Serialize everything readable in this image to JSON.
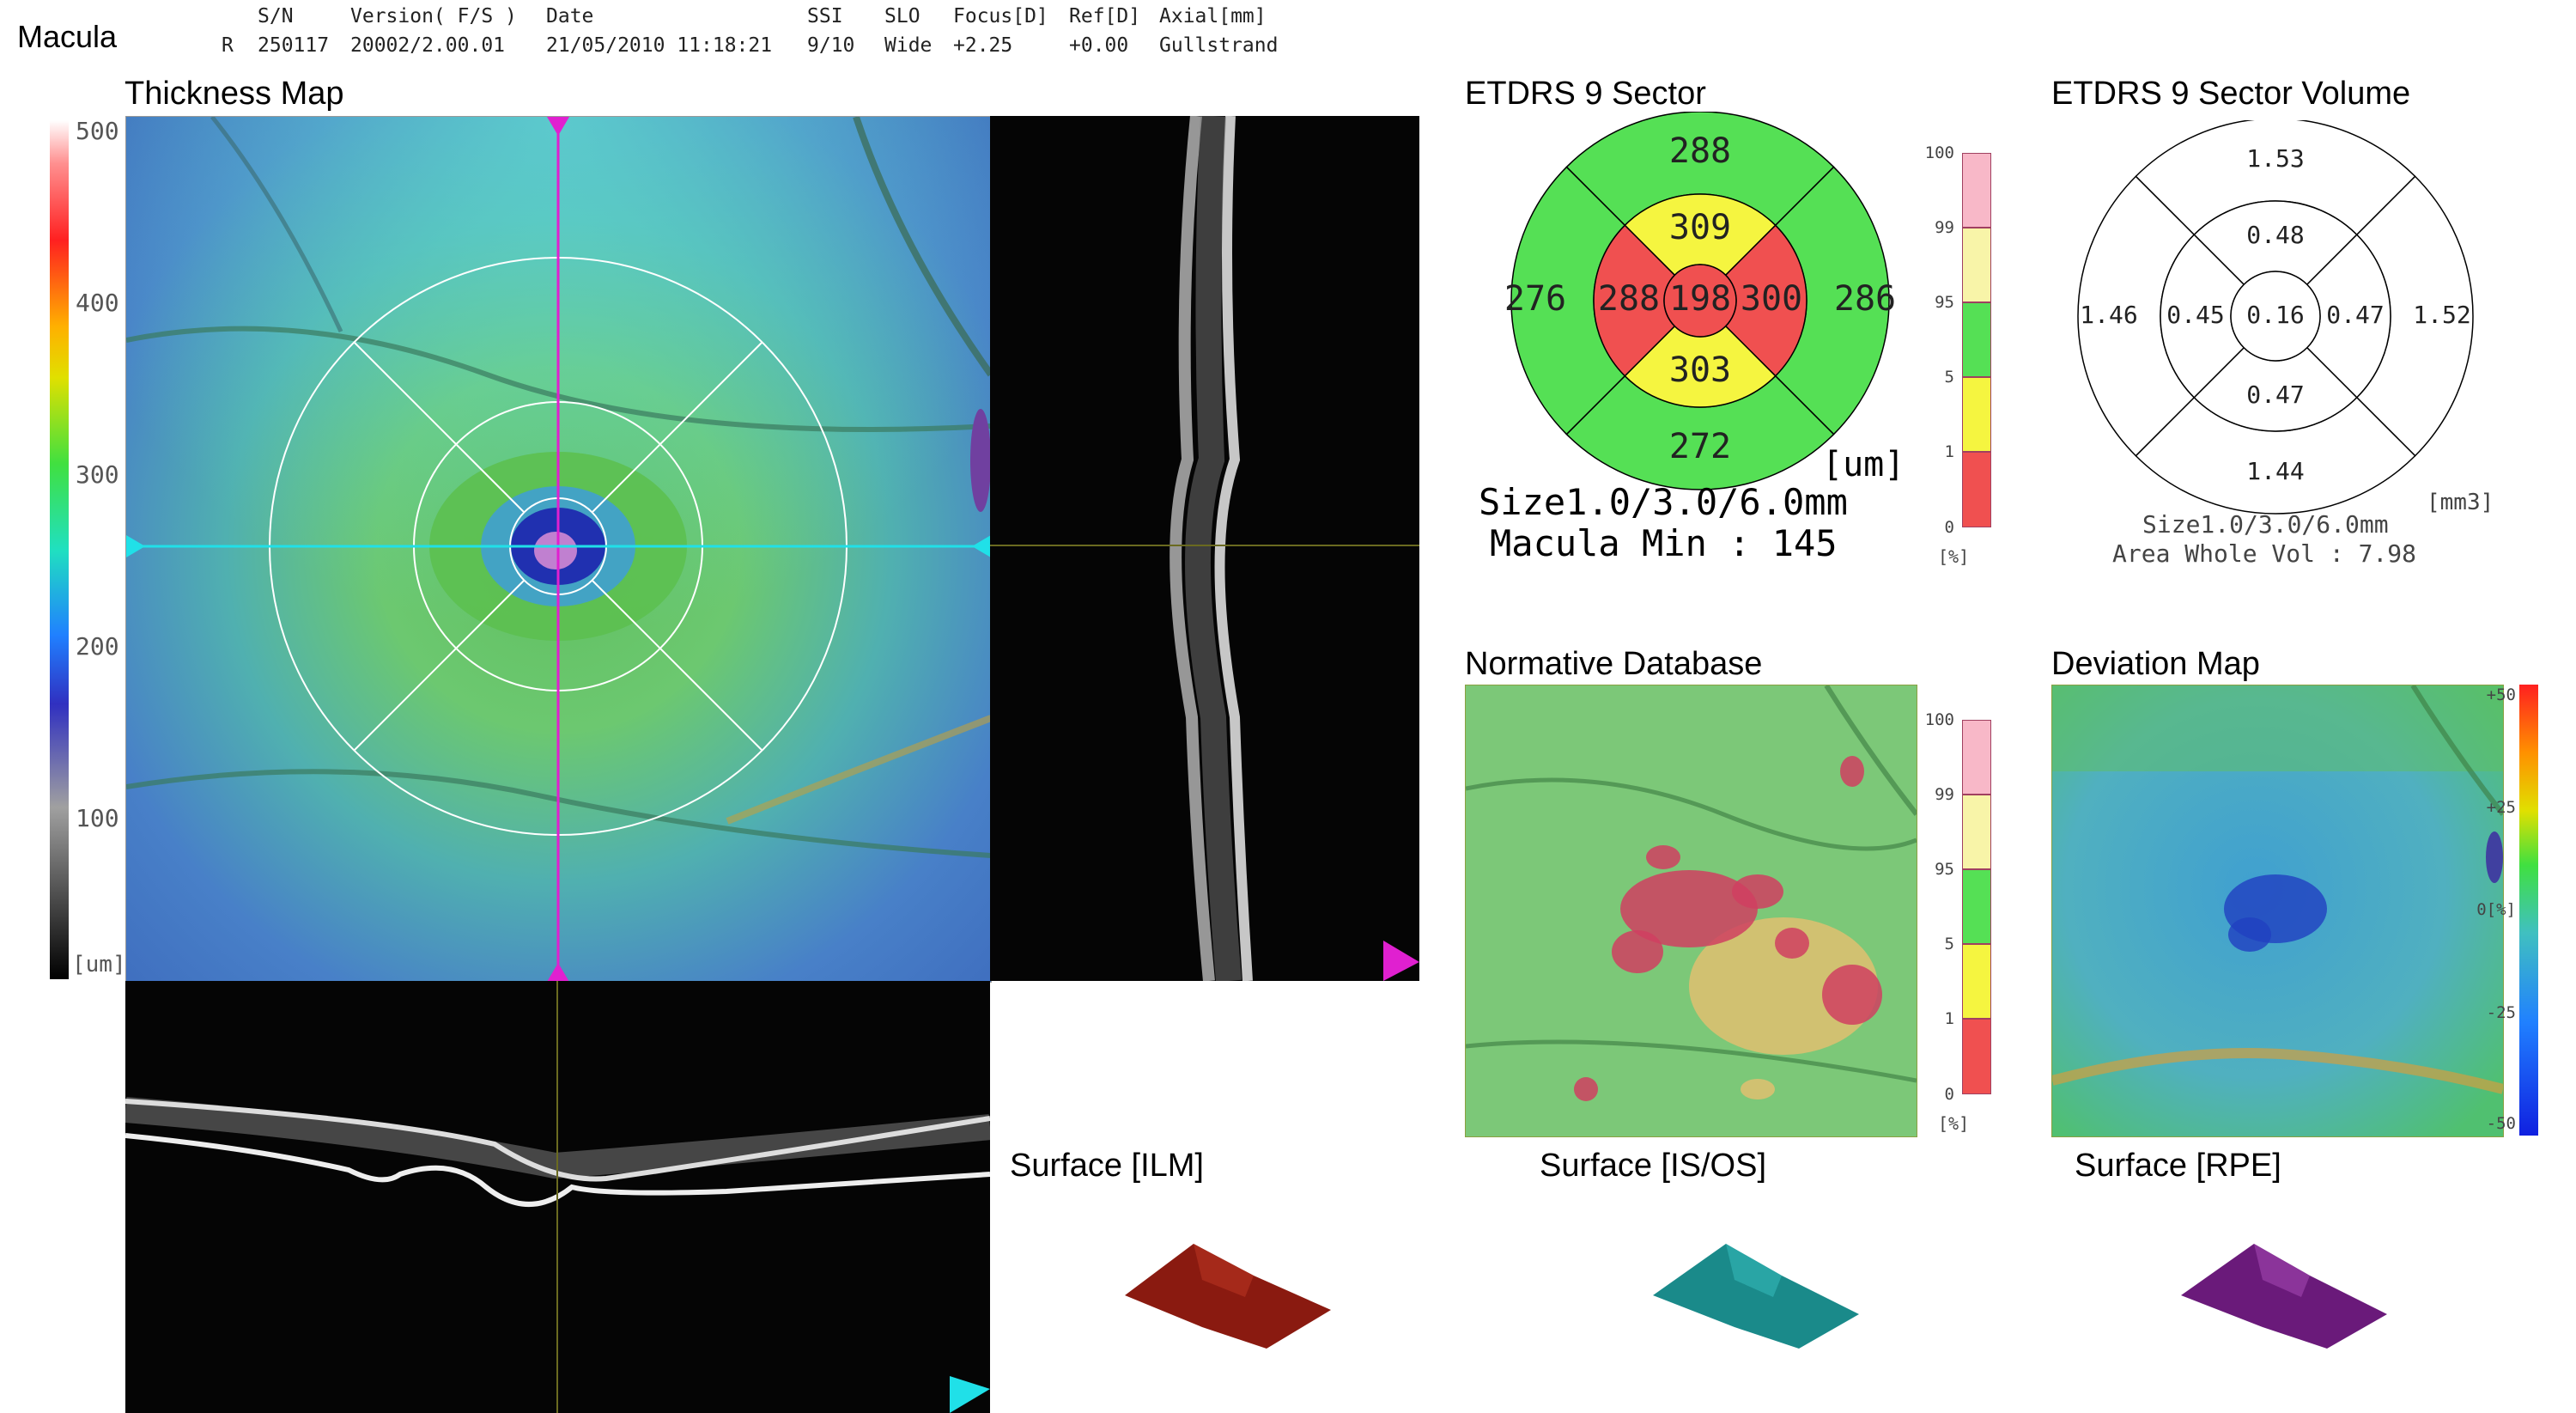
{
  "app_title": "Macula",
  "header": {
    "columns": [
      {
        "label": "S/N",
        "value": "250117"
      },
      {
        "label": "Version( F/S )",
        "value": "20002/2.00.01"
      },
      {
        "label": "Date",
        "value": "21/05/2010 11:18:21"
      },
      {
        "label": "SSI",
        "value": "9/10"
      },
      {
        "label": "SLO",
        "value": "Wide"
      },
      {
        "label": "Focus[D]",
        "value": "+2.25"
      },
      {
        "label": "Ref[D]",
        "value": "+0.00"
      },
      {
        "label": "Axial[mm]",
        "value": "Gullstrand"
      }
    ],
    "eye": "R"
  },
  "thickness_map": {
    "title": "Thickness Map",
    "scale_ticks": [
      "500",
      "400",
      "300",
      "200",
      "100"
    ],
    "scale_unit": "[um]"
  },
  "etdrs_sector": {
    "title": "ETDRS 9 Sector",
    "center": "198",
    "inner": {
      "superior": "309",
      "inferior": "303",
      "nasal": "288",
      "temporal": "300"
    },
    "outer": {
      "superior": "288",
      "inferior": "272",
      "nasal": "276",
      "temporal": "286"
    },
    "unit": "[um]",
    "size_text": "Size1.0/3.0/6.0mm",
    "macula_min": "Macula Min : 145",
    "percent_ticks": [
      "100",
      "99",
      "95",
      "5",
      "1",
      "0"
    ],
    "percent_unit": "[%]"
  },
  "etdrs_volume": {
    "title": "ETDRS 9 Sector Volume",
    "center": "0.16",
    "inner": {
      "superior": "0.48",
      "inferior": "0.47",
      "nasal": "0.45",
      "temporal": "0.47"
    },
    "outer": {
      "superior": "1.53",
      "inferior": "1.44",
      "nasal": "1.46",
      "temporal": "1.52"
    },
    "unit": "[mm3]",
    "size_text": "Size1.0/3.0/6.0mm",
    "whole_vol": "Area Whole Vol : 7.98"
  },
  "normative_db": {
    "title": "Normative Database",
    "percent_ticks": [
      "100",
      "99",
      "95",
      "5",
      "1",
      "0"
    ],
    "percent_unit": "[%]"
  },
  "deviation_map": {
    "title": "Deviation Map",
    "scale_ticks": [
      "+50",
      "+25",
      "0[%]",
      "-25",
      "-50"
    ]
  },
  "surfaces": [
    {
      "label": "Surface [ILM]",
      "color": "#8a1a10"
    },
    {
      "label": "Surface [IS/OS]",
      "color": "#1a8a8a"
    },
    {
      "label": "Surface [RPE]",
      "color": "#6a1a7a"
    }
  ],
  "colors": {
    "green": "#55e055",
    "yellow": "#f5f540",
    "red": "#f05050",
    "pink": "#f8b8c8",
    "lightyellow": "#f8f4a8",
    "magenta": "#e020d0",
    "cyan": "#20e0e8"
  }
}
